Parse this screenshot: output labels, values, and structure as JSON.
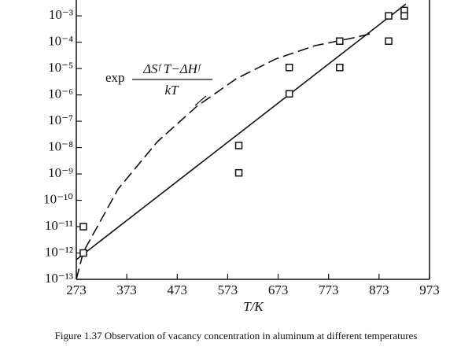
{
  "chart_data": {
    "type": "scatter",
    "x_label": "T/K",
    "caption": "Figure 1.37 Observation of vacancy concentration in aluminum at different temperatures",
    "annotation": {
      "prefix": "exp",
      "numerator": "ΔSᶠ T−ΔHᶠ",
      "denominator": "kT"
    },
    "log_y": true,
    "xlim": [
      273,
      973
    ],
    "ylim": [
      1e-13,
      0.004
    ],
    "xticks": [
      273,
      373,
      473,
      573,
      673,
      773,
      873,
      973
    ],
    "yticks": [
      {
        "value": 1e-13,
        "label": "10⁻¹³"
      },
      {
        "value": 1e-12,
        "label": "10⁻¹²"
      },
      {
        "value": 1e-11,
        "label": "10⁻¹¹"
      },
      {
        "value": 1e-10,
        "label": "10⁻¹⁰"
      },
      {
        "value": 1e-09,
        "label": "10⁻⁹"
      },
      {
        "value": 1e-08,
        "label": "10⁻⁸"
      },
      {
        "value": 1e-07,
        "label": "10⁻⁷"
      },
      {
        "value": 1e-06,
        "label": "10⁻⁶"
      },
      {
        "value": 1e-05,
        "label": "10⁻⁵"
      },
      {
        "value": 0.0001,
        "label": "10⁻⁴"
      },
      {
        "value": 0.001,
        "label": "10⁻³"
      }
    ],
    "points": {
      "color": "#111111",
      "x": [
        287,
        287,
        595,
        595,
        695,
        695,
        795,
        795,
        892,
        892,
        923,
        923
      ],
      "y": [
        1e-11,
        1e-12,
        1.2e-08,
        1.1e-09,
        1.1e-05,
        1.1e-06,
        0.00011,
        1.1e-05,
        0.001,
        0.00011,
        0.0016,
        0.001
      ]
    },
    "fit_line": {
      "color": "#111111",
      "x": [
        273,
        926
      ],
      "y": [
        5.6e-13,
        0.0028
      ]
    },
    "curve": {
      "color": "#111111",
      "x": [
        273,
        287,
        356,
        434,
        512,
        590,
        668,
        746,
        825,
        860
      ],
      "y": [
        1e-13,
        1.1e-12,
        2.7e-10,
        1.7e-08,
        3.7e-07,
        4.1e-06,
        2.3e-05,
        7.4e-05,
        0.00015,
        0.00022
      ]
    }
  }
}
